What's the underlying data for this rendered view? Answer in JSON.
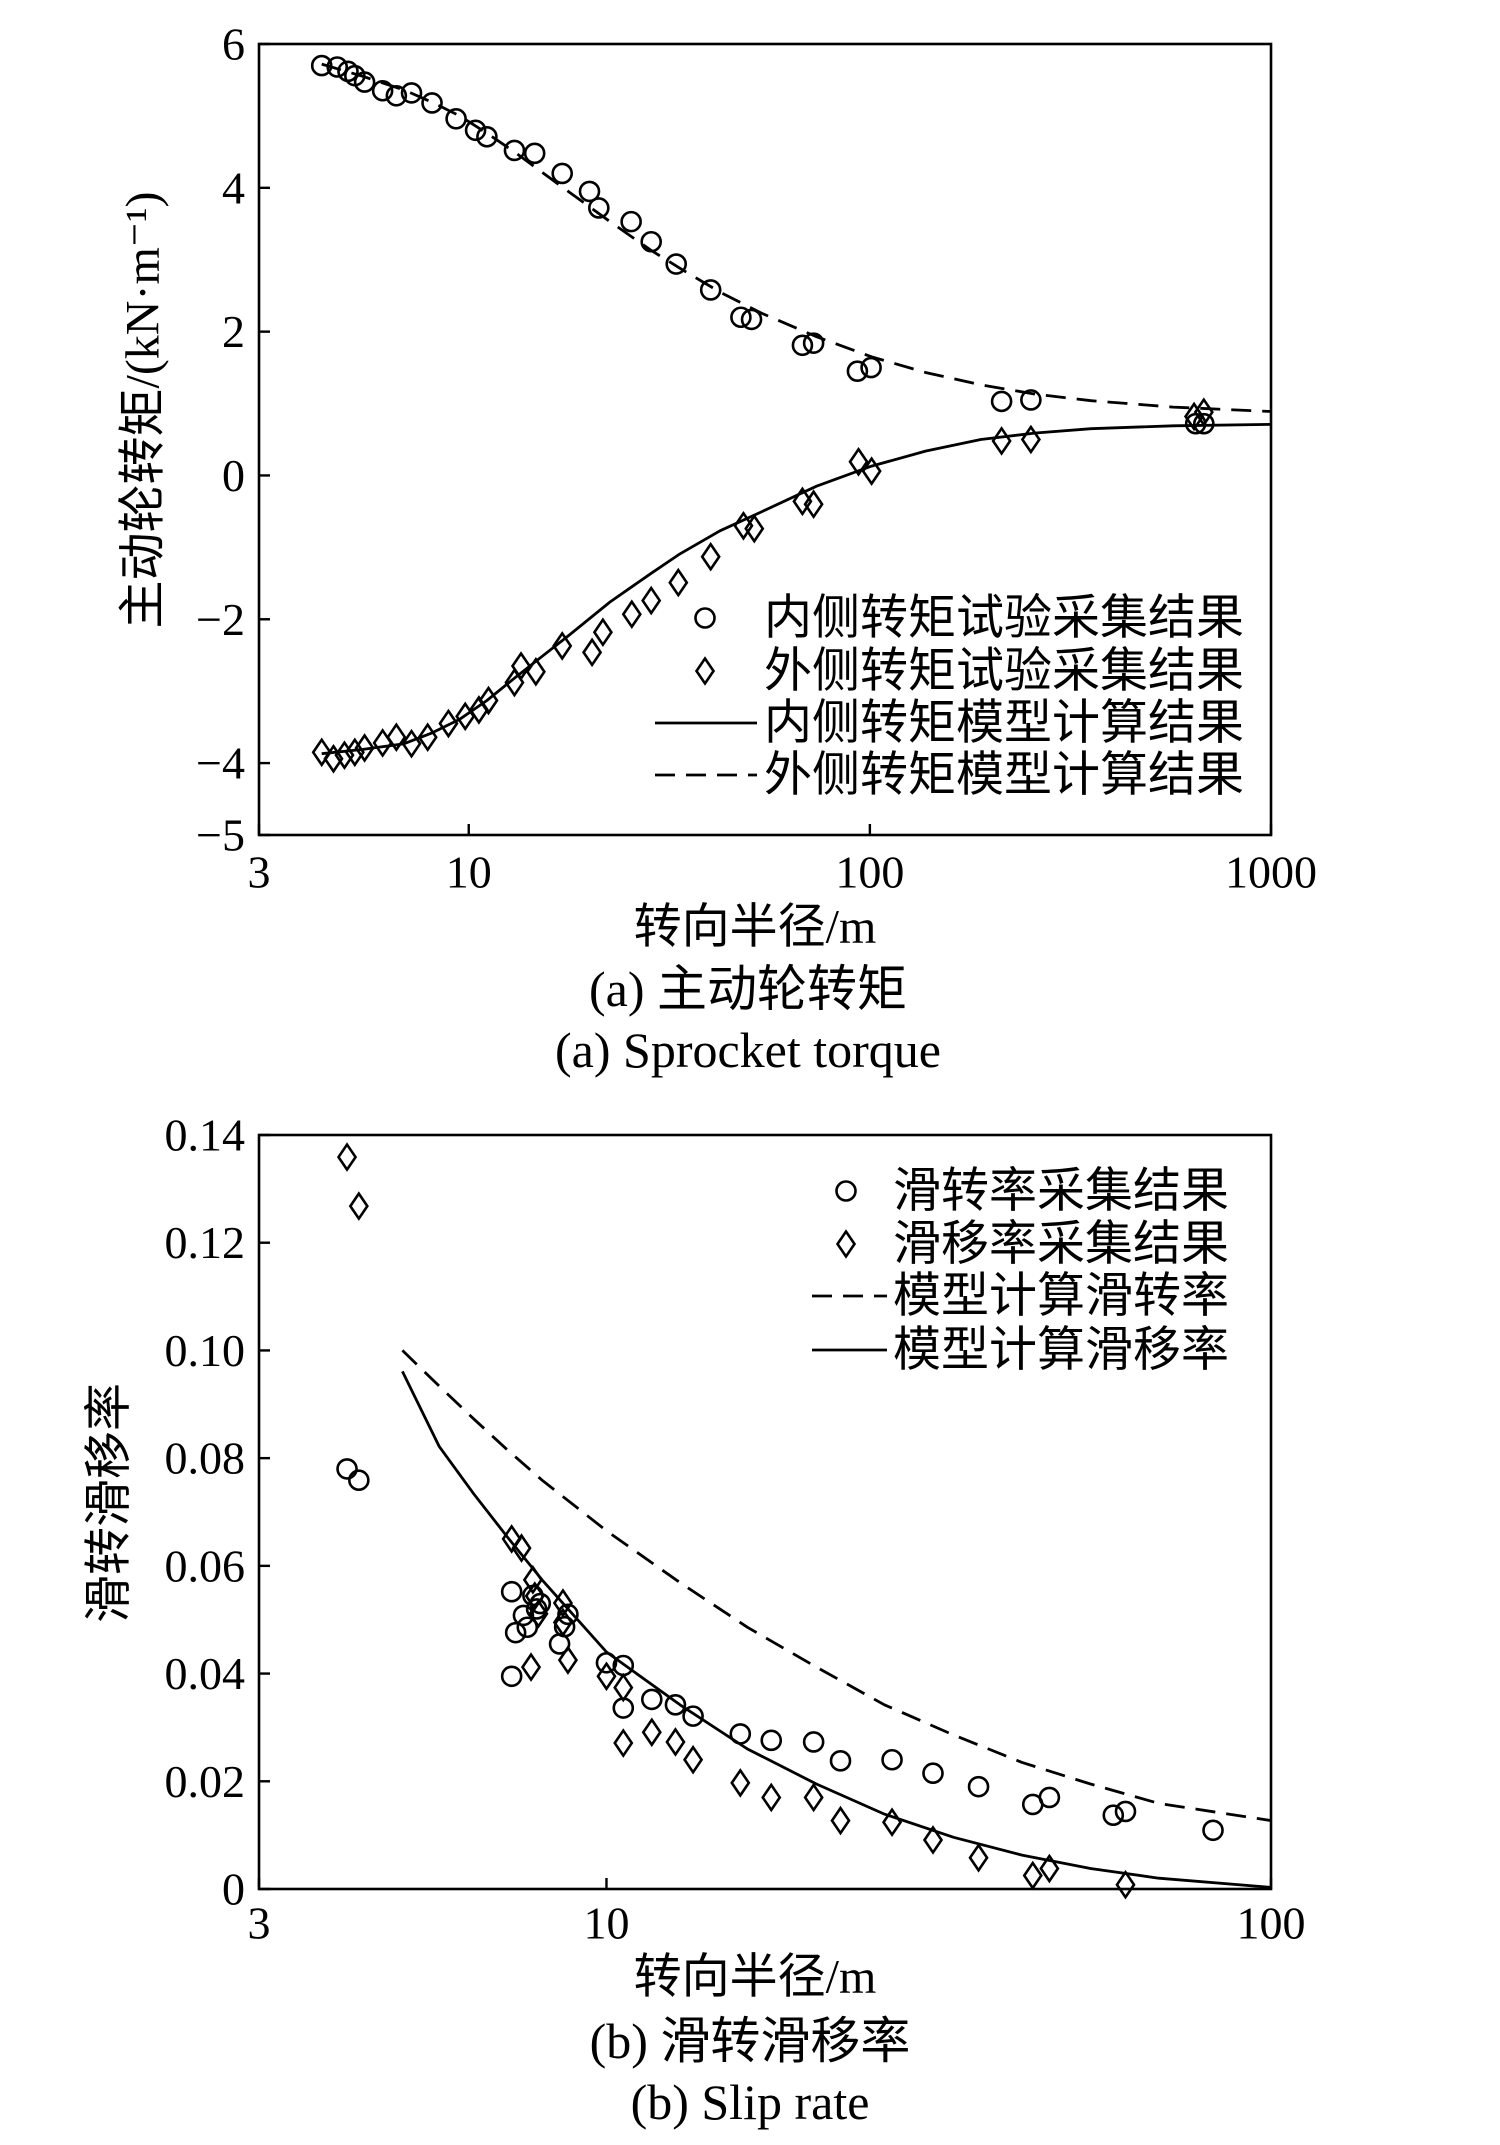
{
  "chart_data": [
    {
      "type": "scatter",
      "x_scale": "log",
      "grid": false,
      "legend_position": "bottom-right",
      "color": "#000000",
      "xlabel": "转向半径/m",
      "ylabel": "主动轮转矩/(kN·m⁻¹)",
      "xlim": [
        3,
        1000
      ],
      "ylim": [
        -5,
        6
      ],
      "x_ticks": [
        3,
        10,
        100,
        1000
      ],
      "x_tick_labels": [
        "3",
        "10",
        "100",
        "1000"
      ],
      "y_ticks": [
        6,
        4,
        2,
        0,
        -2,
        -4,
        -5
      ],
      "y_tick_labels": [
        "6",
        "4",
        "2",
        "0",
        "−2",
        "−4",
        "−5"
      ],
      "caption": "(a) 主动轮转矩",
      "caption_en": "(a) Sprocket torque",
      "series": [
        {
          "name": "内侧转矩试验采集结果",
          "kind": "scatter",
          "marker": "circle",
          "x": [
            4.3,
            4.7,
            5.0,
            5.2,
            5.5,
            6.1,
            6.6,
            7.2,
            8.1,
            9.3,
            10.4,
            11.1,
            13,
            14.6,
            17.1,
            20,
            21.1,
            25.4,
            28.5,
            32.9,
            40.1,
            47.7,
            50.7,
            67.9,
            72.4,
            93.1,
            100.7,
            213,
            252,
            649,
            680
          ],
          "y": [
            5.7,
            5.68,
            5.62,
            5.56,
            5.47,
            5.35,
            5.28,
            5.32,
            5.18,
            4.96,
            4.8,
            4.71,
            4.52,
            4.48,
            4.2,
            3.95,
            3.72,
            3.53,
            3.25,
            2.94,
            2.58,
            2.2,
            2.17,
            1.81,
            1.84,
            1.45,
            1.5,
            1.03,
            1.05,
            0.72,
            0.72
          ]
        },
        {
          "name": "外侧转矩试验采集结果",
          "kind": "scatter",
          "marker": "diamond",
          "x": [
            4.3,
            4.6,
            4.9,
            5.2,
            5.5,
            6.1,
            6.6,
            7.2,
            7.9,
            8.9,
            9.8,
            10.6,
            11.2,
            13,
            13.5,
            14.7,
            17.1,
            20.3,
            21.6,
            25.5,
            28.5,
            33.3,
            40.1,
            48.4,
            51.5,
            67.9,
            72.4,
            93.7,
            101,
            213,
            252,
            643,
            680
          ],
          "y": [
            -3.85,
            -3.94,
            -3.89,
            -3.85,
            -3.79,
            -3.72,
            -3.64,
            -3.73,
            -3.64,
            -3.45,
            -3.35,
            -3.26,
            -3.13,
            -2.88,
            -2.65,
            -2.73,
            -2.37,
            -2.46,
            -2.18,
            -1.93,
            -1.74,
            -1.49,
            -1.13,
            -0.7,
            -0.74,
            -0.36,
            -0.4,
            0.19,
            0.06,
            0.48,
            0.5,
            0.82,
            0.88
          ]
        },
        {
          "name": "内侧转矩模型计算结果",
          "kind": "line",
          "line_style": "solid",
          "x": [
            4.3,
            5.45,
            6.9,
            8.1,
            9.5,
            11.1,
            13,
            15.2,
            17.8,
            22.5,
            28.5,
            33.4,
            42.3,
            53.5,
            73.6,
            101,
            138,
            189,
            259,
            356,
            570,
            1000
          ],
          "y": [
            -3.87,
            -3.81,
            -3.73,
            -3.58,
            -3.39,
            -3.13,
            -2.82,
            -2.52,
            -2.22,
            -1.76,
            -1.36,
            -1.1,
            -0.77,
            -0.51,
            -0.15,
            0.13,
            0.34,
            0.5,
            0.59,
            0.65,
            0.69,
            0.71
          ]
        },
        {
          "name": "外侧转矩模型计算结果",
          "kind": "line",
          "line_style": "dashed",
          "x": [
            4.3,
            5.45,
            6.9,
            8.1,
            9.5,
            11.1,
            13,
            15.2,
            17.8,
            22.5,
            28.5,
            33.4,
            42.3,
            53.5,
            73.6,
            101,
            138,
            189,
            259,
            356,
            570,
            1000
          ],
          "y": [
            5.72,
            5.55,
            5.36,
            5.19,
            5.0,
            4.76,
            4.5,
            4.22,
            3.94,
            3.53,
            3.13,
            2.89,
            2.55,
            2.26,
            1.93,
            1.65,
            1.43,
            1.26,
            1.13,
            1.04,
            0.95,
            0.89
          ]
        }
      ]
    },
    {
      "type": "scatter",
      "x_scale": "log",
      "grid": false,
      "legend_position": "top-right",
      "color": "#000000",
      "xlabel": "转向半径/m",
      "ylabel": "滑转滑移率",
      "xlim": [
        3,
        100
      ],
      "ylim": [
        0,
        0.14
      ],
      "x_ticks": [
        3,
        10,
        100
      ],
      "x_tick_labels": [
        "3",
        "10",
        "100"
      ],
      "y_ticks": [
        0.14,
        0.12,
        0.1,
        0.08,
        0.06,
        0.04,
        0.02,
        0
      ],
      "y_tick_labels": [
        "0.14",
        "0.12",
        "0.10",
        "0.08",
        "0.06",
        "0.04",
        "0.02",
        "0"
      ],
      "caption": "(b) 滑转滑移率",
      "caption_en": "(b) Slip rate",
      "series": [
        {
          "name": "滑转率采集结果",
          "kind": "scatter",
          "marker": "circle",
          "x": [
            4.07,
            4.24,
            7.2,
            7.3,
            7.2,
            7.5,
            7.6,
            7.75,
            7.85,
            7.95,
            8.5,
            8.65,
            8.75,
            10,
            10.6,
            10.6,
            11.7,
            12.7,
            13.5,
            15.9,
            17.7,
            20.5,
            22.5,
            26.9,
            31.0,
            36.3,
            43.8,
            46.4,
            57.9,
            60.4,
            81.8
          ],
          "y": [
            0.078,
            0.0759,
            0.0552,
            0.0476,
            0.0395,
            0.0508,
            0.0486,
            0.0545,
            0.052,
            0.053,
            0.0455,
            0.0487,
            0.051,
            0.042,
            0.0415,
            0.0336,
            0.0352,
            0.0342,
            0.0321,
            0.0288,
            0.0276,
            0.0273,
            0.0238,
            0.024,
            0.0215,
            0.019,
            0.0157,
            0.017,
            0.0137,
            0.0144,
            0.0109
          ]
        },
        {
          "name": "滑移率采集结果",
          "kind": "scatter",
          "marker": "diamond",
          "x": [
            4.07,
            4.24,
            7.2,
            7.45,
            7.7,
            7.75,
            7.8,
            7.9,
            8.6,
            8.6,
            8.75,
            10,
            10.6,
            10.6,
            11.7,
            12.7,
            13.5,
            15.9,
            17.7,
            20.5,
            22.5,
            26.9,
            31.0,
            36.3,
            43.8,
            46.4,
            60.4
          ],
          "y": [
            0.1359,
            0.1268,
            0.065,
            0.0633,
            0.0412,
            0.0574,
            0.0544,
            0.0511,
            0.0531,
            0.0495,
            0.0425,
            0.0395,
            0.0374,
            0.0271,
            0.0291,
            0.0273,
            0.024,
            0.0197,
            0.017,
            0.017,
            0.0127,
            0.0124,
            0.0091,
            0.0058,
            0.0025,
            0.0038,
            0.0008
          ]
        },
        {
          "name": "模型计算滑转率",
          "kind": "line",
          "line_style": "dashed",
          "x": [
            4.93,
            5.6,
            6.31,
            7.1,
            8.0,
            10,
            12.9,
            16.3,
            20.7,
            26.2,
            33.3,
            42.2,
            53.5,
            67.8,
            100
          ],
          "y": [
            0.1,
            0.0934,
            0.0873,
            0.0815,
            0.0759,
            0.0665,
            0.0569,
            0.0486,
            0.0412,
            0.0342,
            0.0286,
            0.0235,
            0.0195,
            0.0159,
            0.0127
          ]
        },
        {
          "name": "模型计算滑移率",
          "kind": "line",
          "line_style": "solid",
          "x": [
            4.93,
            5.6,
            6.31,
            7.1,
            8.0,
            10,
            12.9,
            16.3,
            20.7,
            26.2,
            33.3,
            42.2,
            53.5,
            67.8,
            100
          ],
          "y": [
            0.0961,
            0.0822,
            0.0734,
            0.0653,
            0.0574,
            0.044,
            0.0342,
            0.026,
            0.0195,
            0.0139,
            0.0096,
            0.0063,
            0.0038,
            0.002,
            0.0003
          ]
        }
      ]
    }
  ]
}
